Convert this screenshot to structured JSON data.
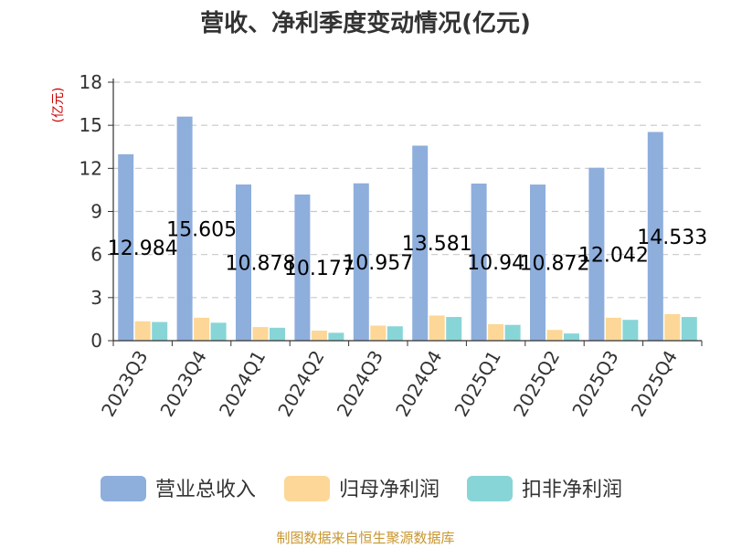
{
  "chart_data": {
    "type": "bar",
    "title": "营收、净利季度变动情况(亿元)",
    "unit_label": "(亿元)",
    "categories": [
      "2023Q3",
      "2023Q4",
      "2024Q1",
      "2024Q2",
      "2024Q3",
      "2024Q4",
      "2025Q1",
      "2025Q2",
      "2025Q3",
      "2025Q4"
    ],
    "series": [
      {
        "name": "营业总收入",
        "color": "#8eaedc",
        "values": [
          12.984,
          15.605,
          10.878,
          10.177,
          10.957,
          13.581,
          10.94,
          10.872,
          12.042,
          14.533
        ],
        "labels": [
          "12.984",
          "15.605",
          "10.878",
          "10.177",
          "10.957",
          "13.581",
          "10.94",
          "10.872",
          "12.042",
          "14.533"
        ]
      },
      {
        "name": "归母净利润",
        "color": "#fdd797",
        "values": [
          1.35,
          1.6,
          0.95,
          0.7,
          1.05,
          1.75,
          1.15,
          0.75,
          1.6,
          1.85
        ]
      },
      {
        "name": "扣非净利润",
        "color": "#88d5d7",
        "values": [
          1.3,
          1.25,
          0.9,
          0.55,
          1.0,
          1.65,
          1.1,
          0.5,
          1.45,
          1.65
        ]
      }
    ],
    "ylim": [
      0,
      18
    ],
    "yticks": [
      "0",
      "3",
      "6",
      "9",
      "12",
      "15",
      "18"
    ],
    "grid": true,
    "legend_position": "bottom"
  },
  "source": "制图数据来自恒生聚源数据库"
}
